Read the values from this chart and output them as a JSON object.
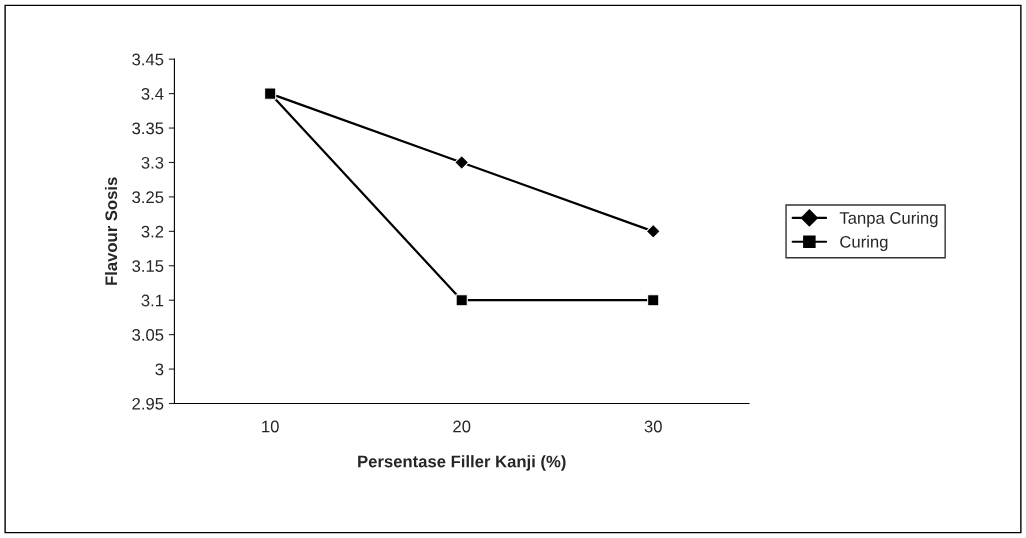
{
  "chart_data": {
    "type": "line",
    "xlabel": "Persentase Filler Kanji (%)",
    "ylabel": "Flavour Sosis",
    "categories": [
      "10",
      "20",
      "30"
    ],
    "series": [
      {
        "name": "Tanpa Curing",
        "color": "#000000",
        "values": [
          3.4,
          3.3,
          3.2
        ],
        "marker": "diamond"
      },
      {
        "name": "Curing",
        "color": "#000000",
        "values": [
          3.4,
          3.1,
          3.1
        ],
        "marker": "square"
      }
    ],
    "ylim": [
      2.95,
      3.45
    ],
    "yticks": [
      2.95,
      3,
      3.05,
      3.1,
      3.15,
      3.2,
      3.25,
      3.3,
      3.35,
      3.4,
      3.45
    ],
    "grid": false,
    "legend": "right",
    "line_style": "solid"
  }
}
